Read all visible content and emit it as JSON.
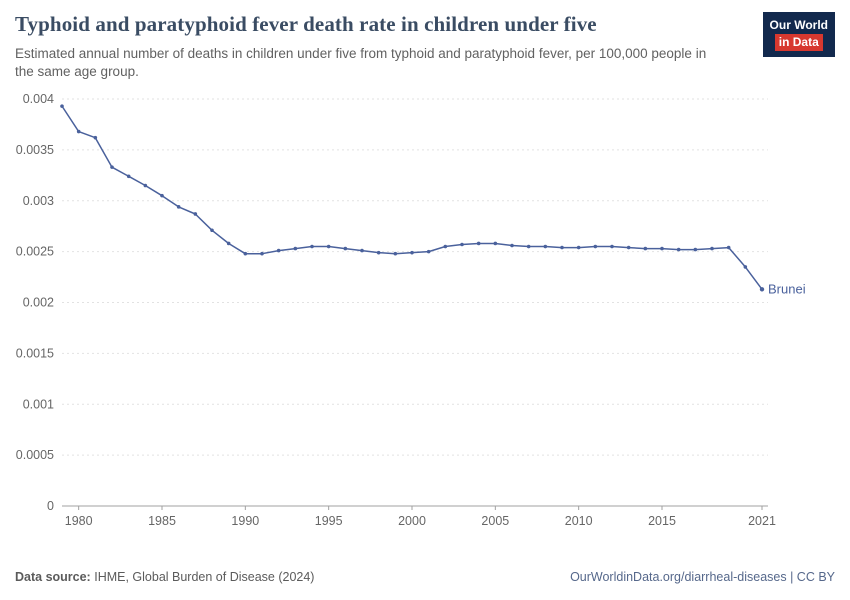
{
  "logo": {
    "line1": "Our World",
    "line2": "in Data"
  },
  "header": {
    "title": "Typhoid and paratyphoid fever death rate in children under five",
    "subtitle": "Estimated annual number of deaths in children under five from typhoid and paratyphoid fever, per 100,000 people in the same age group."
  },
  "chart_data": {
    "type": "line",
    "title": "Typhoid and paratyphoid fever death rate in children under five",
    "xlabel": "",
    "ylabel": "",
    "ylim": [
      0,
      0.004
    ],
    "grid": true,
    "legend": "end-label",
    "line_color": "#4a619c",
    "x": [
      1979,
      1980,
      1981,
      1982,
      1983,
      1984,
      1985,
      1986,
      1987,
      1988,
      1989,
      1990,
      1991,
      1992,
      1993,
      1994,
      1995,
      1996,
      1997,
      1998,
      1999,
      2000,
      2001,
      2002,
      2003,
      2004,
      2005,
      2006,
      2007,
      2008,
      2009,
      2010,
      2011,
      2012,
      2013,
      2014,
      2015,
      2016,
      2017,
      2018,
      2019,
      2020,
      2021
    ],
    "series": [
      {
        "name": "Brunei",
        "color": "#4a619c",
        "values": [
          0.00393,
          0.00368,
          0.00362,
          0.00333,
          0.00324,
          0.00315,
          0.00305,
          0.00294,
          0.00287,
          0.00271,
          0.00258,
          0.00248,
          0.00248,
          0.00251,
          0.00253,
          0.00255,
          0.00255,
          0.00253,
          0.00251,
          0.00249,
          0.00248,
          0.00249,
          0.0025,
          0.00255,
          0.00257,
          0.00258,
          0.00258,
          0.00256,
          0.00255,
          0.00255,
          0.00254,
          0.00254,
          0.00255,
          0.00255,
          0.00254,
          0.00253,
          0.00253,
          0.00252,
          0.00252,
          0.00253,
          0.00254,
          0.00235,
          0.00213
        ]
      }
    ],
    "yticks": [
      0,
      0.0005,
      0.001,
      0.0015,
      0.002,
      0.0025,
      0.003,
      0.0035,
      0.004
    ],
    "ytick_labels": [
      "0",
      "0.0005",
      "0.001",
      "0.0015",
      "0.002",
      "0.0025",
      "0.003",
      "0.0035",
      "0.004"
    ],
    "xticks": [
      1980,
      1985,
      1990,
      1995,
      2000,
      2005,
      2010,
      2015,
      2021
    ],
    "xtick_labels": [
      "1980",
      "1985",
      "1990",
      "1995",
      "2000",
      "2005",
      "2010",
      "2015",
      "2021"
    ]
  },
  "footer": {
    "source_label": "Data source:",
    "source": "IHME, Global Burden of Disease (2024)",
    "link": "OurWorldinData.org/diarrheal-diseases | CC BY"
  }
}
